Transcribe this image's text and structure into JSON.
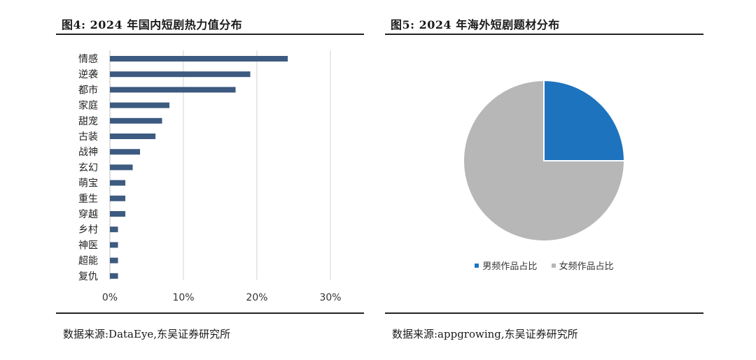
{
  "left": {
    "title": "图4:  2024 年国内短剧热力值分布",
    "source": "数据来源:DataEye,东吴证券研究所"
  },
  "right": {
    "title": "图5:  2024 年海外短剧题材分布",
    "source": "数据来源:appgrowing,东吴证券研究所"
  },
  "chart_data": [
    {
      "type": "bar",
      "orientation": "horizontal",
      "title": "",
      "categories": [
        "情感",
        "逆袭",
        "都市",
        "家庭",
        "甜宠",
        "古装",
        "战神",
        "玄幻",
        "萌宝",
        "重生",
        "穿越",
        "乡村",
        "神医",
        "超能",
        "复仇"
      ],
      "values": [
        24.2,
        19.1,
        17.1,
        8.1,
        7.1,
        6.2,
        4.1,
        3.1,
        2.1,
        2.1,
        2.1,
        1.1,
        1.1,
        1.1,
        1.1
      ],
      "xlim": [
        0,
        30
      ],
      "xticks": [
        "0%",
        "10%",
        "20%",
        "30%"
      ],
      "xtick_values": [
        0,
        10,
        20,
        30
      ],
      "grid": "vertical",
      "bar_color": "#3d5a80"
    },
    {
      "type": "pie",
      "title": "",
      "labels": [
        "男频作品占比",
        "女频作品占比"
      ],
      "values": [
        25,
        75
      ],
      "colors": [
        "#1e73be",
        "#b7b7b7"
      ],
      "legend": "bottom"
    }
  ]
}
